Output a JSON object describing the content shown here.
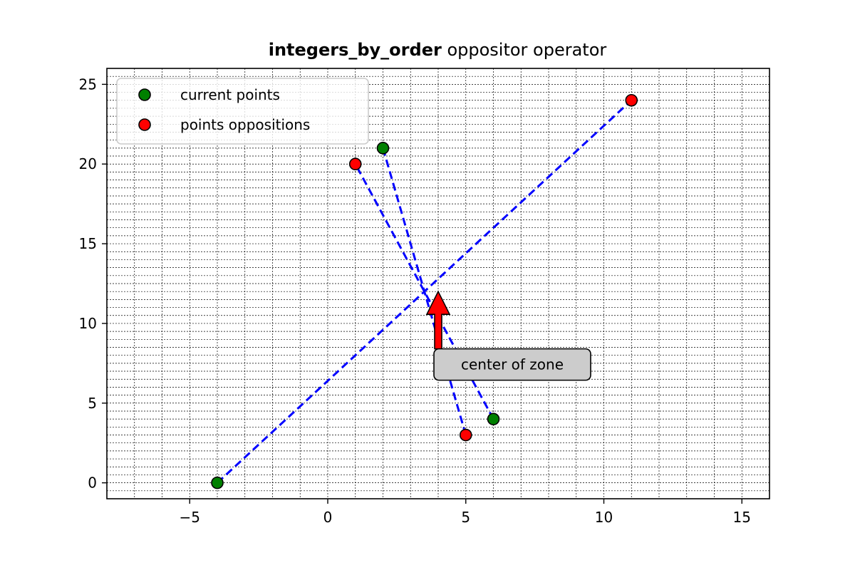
{
  "chart_data": {
    "type": "scatter",
    "title_bold": "integers_by_order",
    "title_rest": " oppositor operator",
    "xlabel": "",
    "ylabel": "",
    "xlim": [
      -8,
      16
    ],
    "ylim": [
      -1,
      26
    ],
    "x_major_ticks": [
      -5,
      0,
      5,
      10,
      15
    ],
    "x_tick_labels": [
      "−5",
      "0",
      "5",
      "10",
      "15"
    ],
    "y_major_ticks": [
      0,
      5,
      10,
      15,
      20,
      25
    ],
    "y_tick_labels": [
      "0",
      "5",
      "10",
      "15",
      "20",
      "25"
    ],
    "minor_grid": true,
    "legend_position": "top-left",
    "series": [
      {
        "name": "current points",
        "color": "#008000",
        "points": [
          [
            -4,
            0
          ],
          [
            2,
            21
          ],
          [
            6,
            4
          ]
        ]
      },
      {
        "name": "points oppositions",
        "color": "#ff0000",
        "points": [
          [
            11,
            24
          ],
          [
            1,
            20
          ],
          [
            5,
            3
          ]
        ]
      }
    ],
    "pairs": [
      {
        "from": [
          -4,
          0
        ],
        "to": [
          11,
          24
        ]
      },
      {
        "from": [
          2,
          21
        ],
        "to": [
          5,
          3
        ]
      },
      {
        "from": [
          6,
          4
        ],
        "to": [
          1,
          20
        ]
      }
    ],
    "line_color": "#0000ff",
    "annotation": {
      "text": "center of zone",
      "point": [
        4,
        12
      ],
      "text_position": [
        4,
        7.6
      ],
      "arrow_color": "#ff0000"
    }
  }
}
